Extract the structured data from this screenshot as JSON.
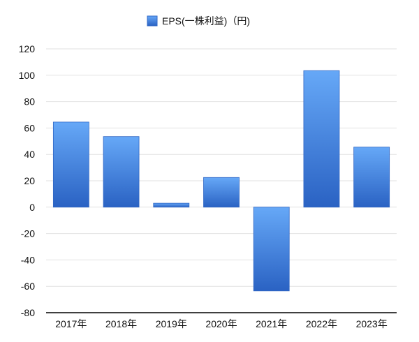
{
  "chart_data": {
    "type": "bar",
    "categories": [
      "2017年",
      "2018年",
      "2019年",
      "2020年",
      "2021年",
      "2022年",
      "2023年"
    ],
    "series": [
      {
        "name": "EPS(一株利益)（円)",
        "values": [
          64.5,
          53.5,
          3,
          22.5,
          -63.5,
          103.5,
          45.5
        ]
      }
    ],
    "title": "",
    "xlabel": "",
    "ylabel": "",
    "ylim": [
      -80,
      120
    ],
    "yticks": [
      120,
      100,
      80,
      60,
      40,
      20,
      0,
      -20,
      -40,
      -60,
      -80
    ],
    "grid": true,
    "legend": "top-center",
    "colors": {
      "bar_top": "#66a8f7",
      "bar_bottom": "#2a62c3",
      "bar_stroke": "#2f66c4",
      "grid": "#e2e2e2",
      "axis": "#000000"
    }
  }
}
